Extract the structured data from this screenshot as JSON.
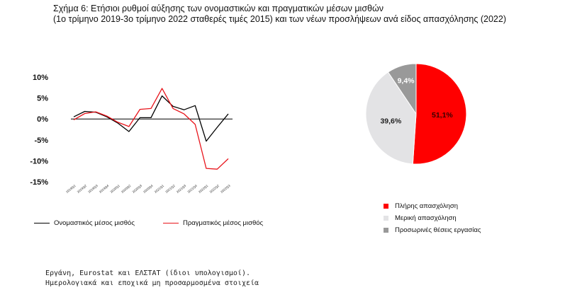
{
  "title": {
    "line1": "Σχήμα 6: Ετήσιοι ρυθμοί αύξησης των ονομαστικών και πραγματικών μέσων μισθών",
    "line2": "(1ο τρίμηνο 2019-3ο τρίμηνο 2022 σταθερές τιμές 2015) και των νέων προσλήψεων ανά είδος απασχόλησης (2022)"
  },
  "source": {
    "line1": "Εργάνη, Eurostat και ΕΛΣΤΑΤ (ίδιοι υπολογισμοί).",
    "line2": "Ημερολογιακά και εποχικά μη προσαρμοσμένα στοιχεία"
  },
  "colors": {
    "nominal": "#000000",
    "real": "#e8141b",
    "full_time": "#ff0000",
    "part_time": "#e3e3e5",
    "temporary": "#999999"
  },
  "chart_data": [
    {
      "type": "line",
      "title": "",
      "xlabel": "",
      "ylabel": "",
      "categories": [
        "2019Q1",
        "2019Q2",
        "2019Q3",
        "2019Q4",
        "2020Q1",
        "2020Q2",
        "2020Q3",
        "2020Q4",
        "2021Q1",
        "2021Q2",
        "2021Q3",
        "2021Q4",
        "2022Q1",
        "2022Q2",
        "2022Q3"
      ],
      "y_ticks": [
        "10%",
        "5%",
        "0%",
        "-5%",
        "-10%",
        "-15%"
      ],
      "y_tick_values": [
        10,
        5,
        0,
        -5,
        -10,
        -15
      ],
      "ylim": [
        -15,
        10
      ],
      "grid": false,
      "legend_position": "bottom",
      "series": [
        {
          "name": "Ονομαστικός μέσος μισθός",
          "color_key": "nominal",
          "values": [
            0.5,
            1.8,
            1.6,
            0.5,
            -1.0,
            -3.0,
            0.3,
            0.3,
            5.5,
            3.0,
            2.2,
            3.2,
            -5.3,
            -2.0,
            1.2
          ]
        },
        {
          "name": "Πραγματικός μέσος μισθός",
          "color_key": "real",
          "values": [
            -0.2,
            1.3,
            1.7,
            0.7,
            -0.8,
            -1.8,
            2.3,
            2.5,
            7.3,
            2.5,
            1.2,
            -1.3,
            -11.8,
            -12.0,
            -9.5
          ]
        }
      ]
    },
    {
      "type": "pie",
      "title": "",
      "legend_position": "bottom",
      "slices": [
        {
          "label": "Πλήρης απασχόληση",
          "value": 51.1,
          "display": "51,1%",
          "color_key": "full_time"
        },
        {
          "label": "Μερική απασχόληση",
          "value": 39.6,
          "display": "39,6%",
          "color_key": "part_time"
        },
        {
          "label": "Προσωρινές θέσεις εργασίας",
          "value": 9.4,
          "display": "9,4%",
          "color_key": "temporary"
        }
      ]
    }
  ]
}
